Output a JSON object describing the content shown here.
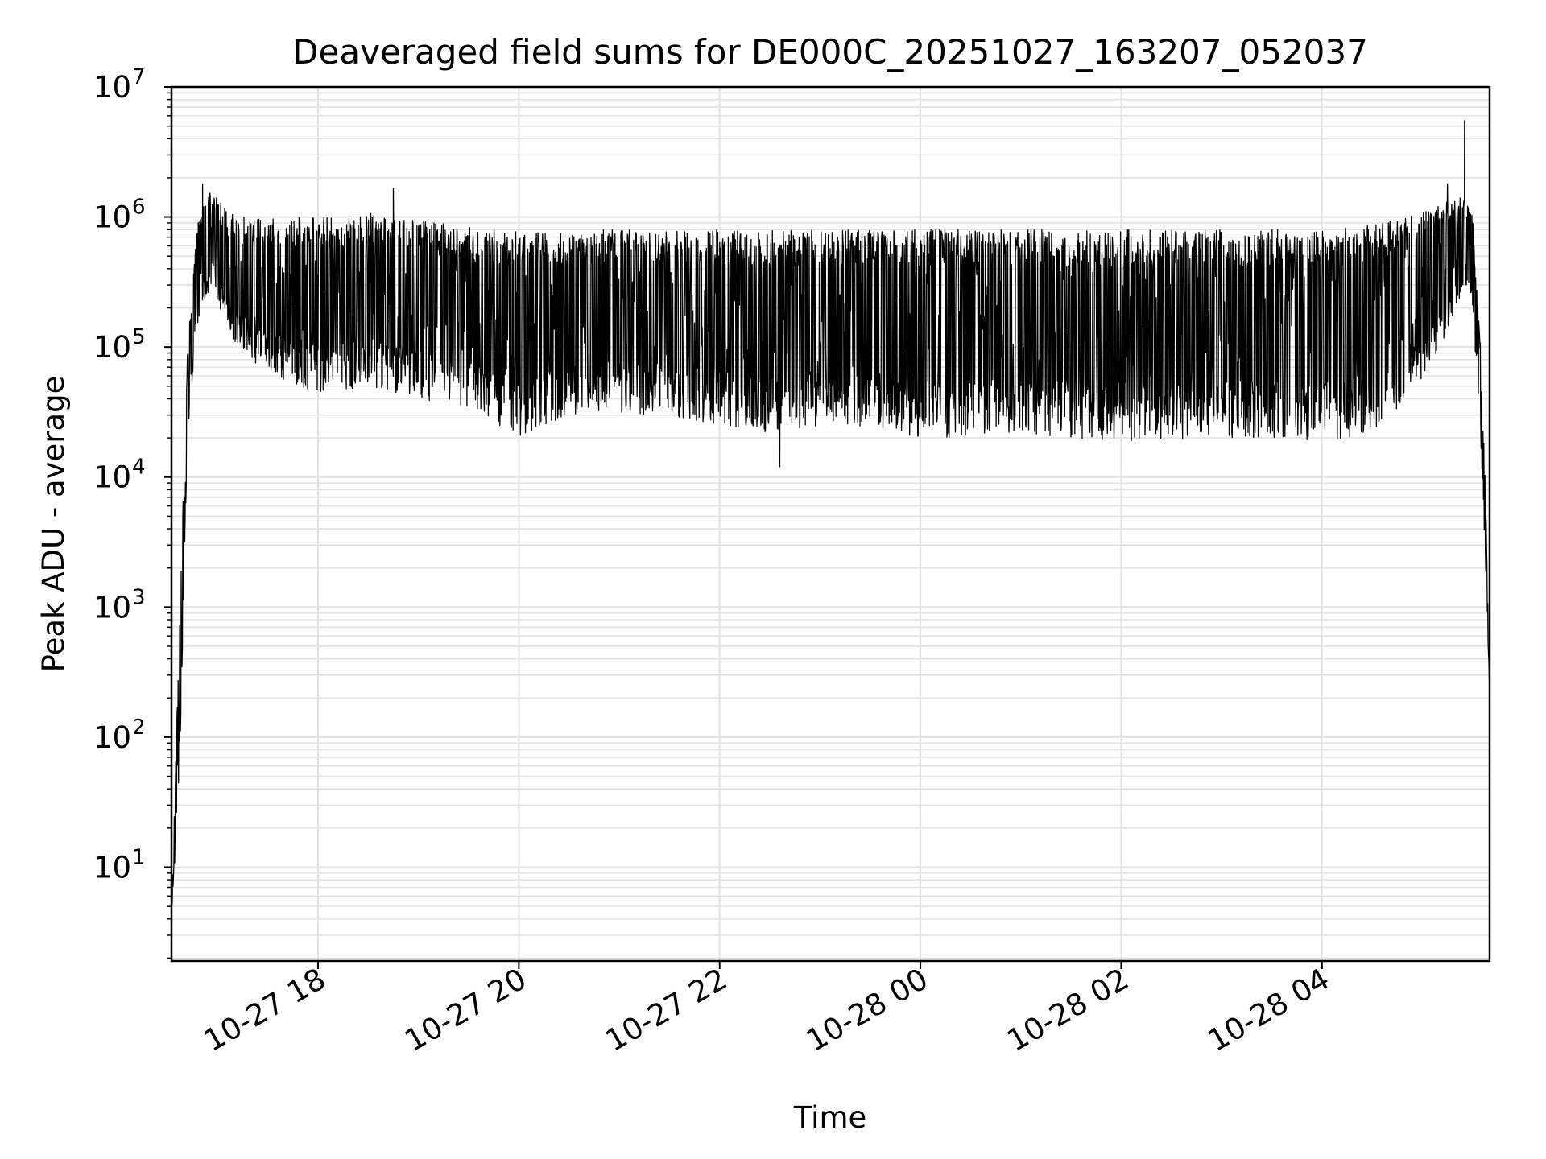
{
  "chart_data": {
    "type": "line",
    "title": "Deaveraged field sums for DE000C_20251027_163207_052037",
    "xlabel": "Time",
    "ylabel": "Peak ADU - average",
    "yscale": "log",
    "ylim": [
      1.9,
      10000000
    ],
    "xlim_hours": [
      16.54,
      29.67
    ],
    "grid": true,
    "line_color": "#000000",
    "x_ticks": [
      {
        "hours": 18,
        "label": "10-27 18"
      },
      {
        "hours": 20,
        "label": "10-27 20"
      },
      {
        "hours": 22,
        "label": "10-27 22"
      },
      {
        "hours": 24,
        "label": "10-28 00"
      },
      {
        "hours": 26,
        "label": "10-28 02"
      },
      {
        "hours": 28,
        "label": "10-28 04"
      }
    ],
    "y_ticks": [
      {
        "exp": 1,
        "base": "10",
        "sup": "1"
      },
      {
        "exp": 2,
        "base": "10",
        "sup": "2"
      },
      {
        "exp": 3,
        "base": "10",
        "sup": "3"
      },
      {
        "exp": 4,
        "base": "10",
        "sup": "4"
      },
      {
        "exp": 5,
        "base": "10",
        "sup": "5"
      },
      {
        "exp": 6,
        "base": "10",
        "sup": "6"
      },
      {
        "exp": 7,
        "base": "10",
        "sup": "7"
      }
    ],
    "series": [
      {
        "name": "peak_minus_average",
        "description": "dense alternating series: upper envelope ~ high values, lower envelope ~ low values",
        "x_hours": [
          16.54,
          16.62,
          16.7,
          16.8,
          16.93,
          17.1,
          17.3,
          17.55,
          17.8,
          18.0,
          18.25,
          18.5,
          18.75,
          19.0,
          19.25,
          19.5,
          19.8,
          20.0,
          20.3,
          20.6,
          21.0,
          21.5,
          22.0,
          22.5,
          23.0,
          23.5,
          24.0,
          24.5,
          25.0,
          25.5,
          26.0,
          26.5,
          27.0,
          27.5,
          28.0,
          28.3,
          28.6,
          28.9,
          29.1,
          29.3,
          29.42,
          29.5,
          29.58,
          29.63,
          29.67
        ],
        "upper": [
          4,
          1000,
          100000,
          900000,
          1700000,
          1100000,
          1000000,
          1050000,
          1000000,
          1000000,
          1050000,
          1100000,
          1000000,
          950000,
          900000,
          850000,
          800000,
          800000,
          800000,
          800000,
          800000,
          800000,
          800000,
          800000,
          800000,
          800000,
          800000,
          800000,
          800000,
          800000,
          800000,
          800000,
          800000,
          800000,
          800000,
          850000,
          900000,
          1050000,
          1200000,
          1500000,
          1400000,
          1000000,
          100000,
          8000,
          200
        ],
        "lower": [
          4,
          50,
          20000,
          150000,
          300000,
          130000,
          80000,
          60000,
          50000,
          45000,
          45000,
          50000,
          45000,
          42000,
          35000,
          30000,
          25000,
          20000,
          25000,
          30000,
          30000,
          30000,
          25000,
          22000,
          25000,
          24000,
          20000,
          20000,
          22000,
          20000,
          19000,
          19000,
          20000,
          20000,
          19000,
          20000,
          25000,
          40000,
          80000,
          150000,
          300000,
          200000,
          20000,
          2000,
          200
        ]
      }
    ],
    "spikes": [
      {
        "hours": 16.85,
        "value": 1800000
      },
      {
        "hours": 18.75,
        "value": 1650000
      },
      {
        "hours": 22.6,
        "value": 12000
      },
      {
        "hours": 29.25,
        "value": 1800000
      },
      {
        "hours": 29.42,
        "value": 5500000
      }
    ]
  }
}
